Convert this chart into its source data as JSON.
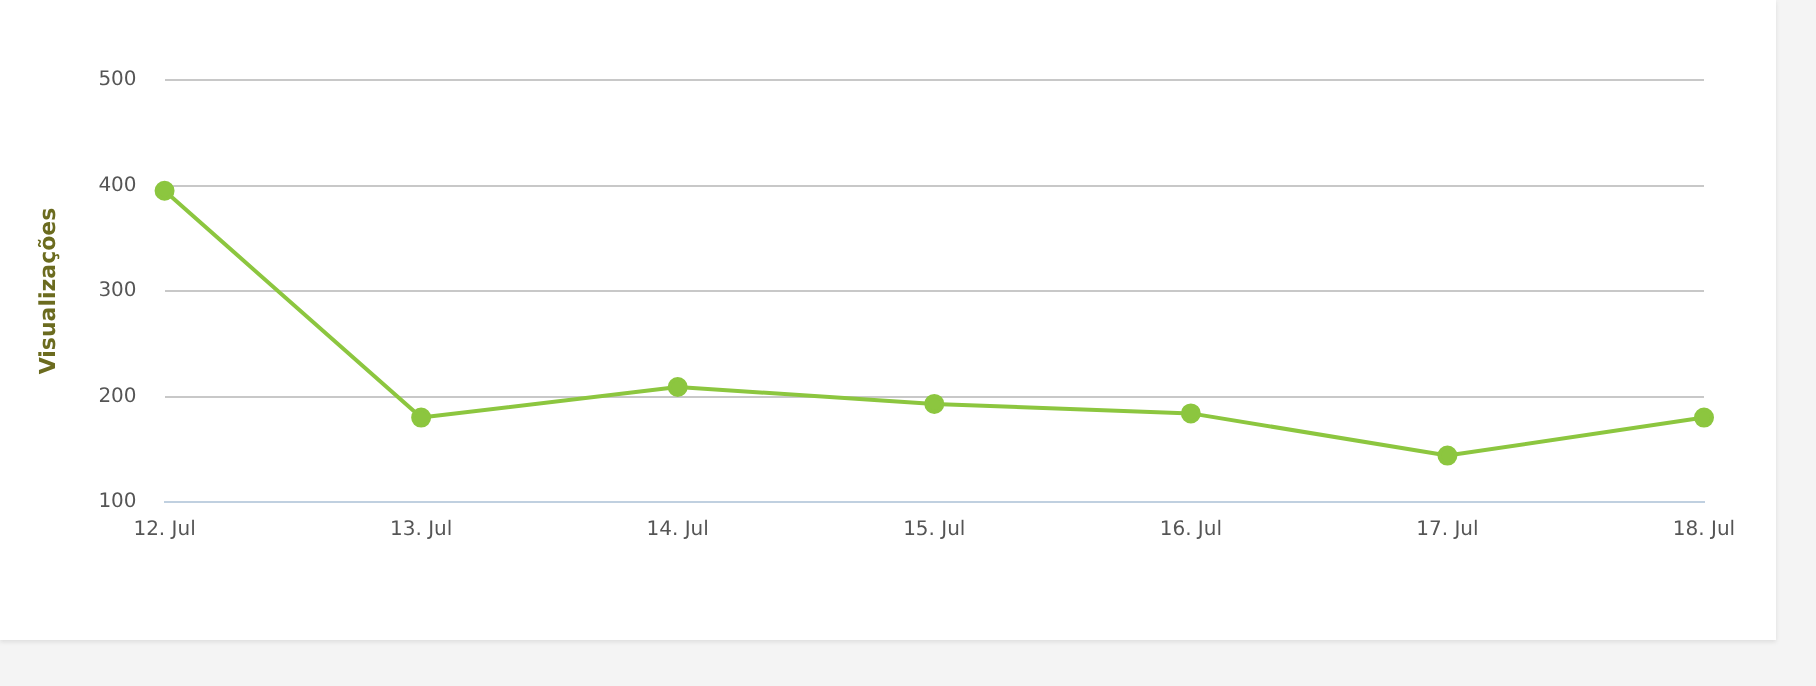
{
  "chart_data": {
    "type": "line",
    "ylabel": "Visualizações",
    "categories": [
      "12. Jul",
      "13. Jul",
      "14. Jul",
      "15. Jul",
      "16. Jul",
      "17. Jul",
      "18. Jul"
    ],
    "series": [
      {
        "color": "#8cc63f",
        "values": [
          395,
          180,
          209,
          193,
          184,
          144,
          180
        ]
      }
    ],
    "ylim": [
      100,
      500
    ],
    "yticks": [
      100,
      200,
      300,
      400,
      500
    ],
    "grid": "y",
    "legend": false,
    "marker": "circle",
    "line_style": "solid"
  }
}
